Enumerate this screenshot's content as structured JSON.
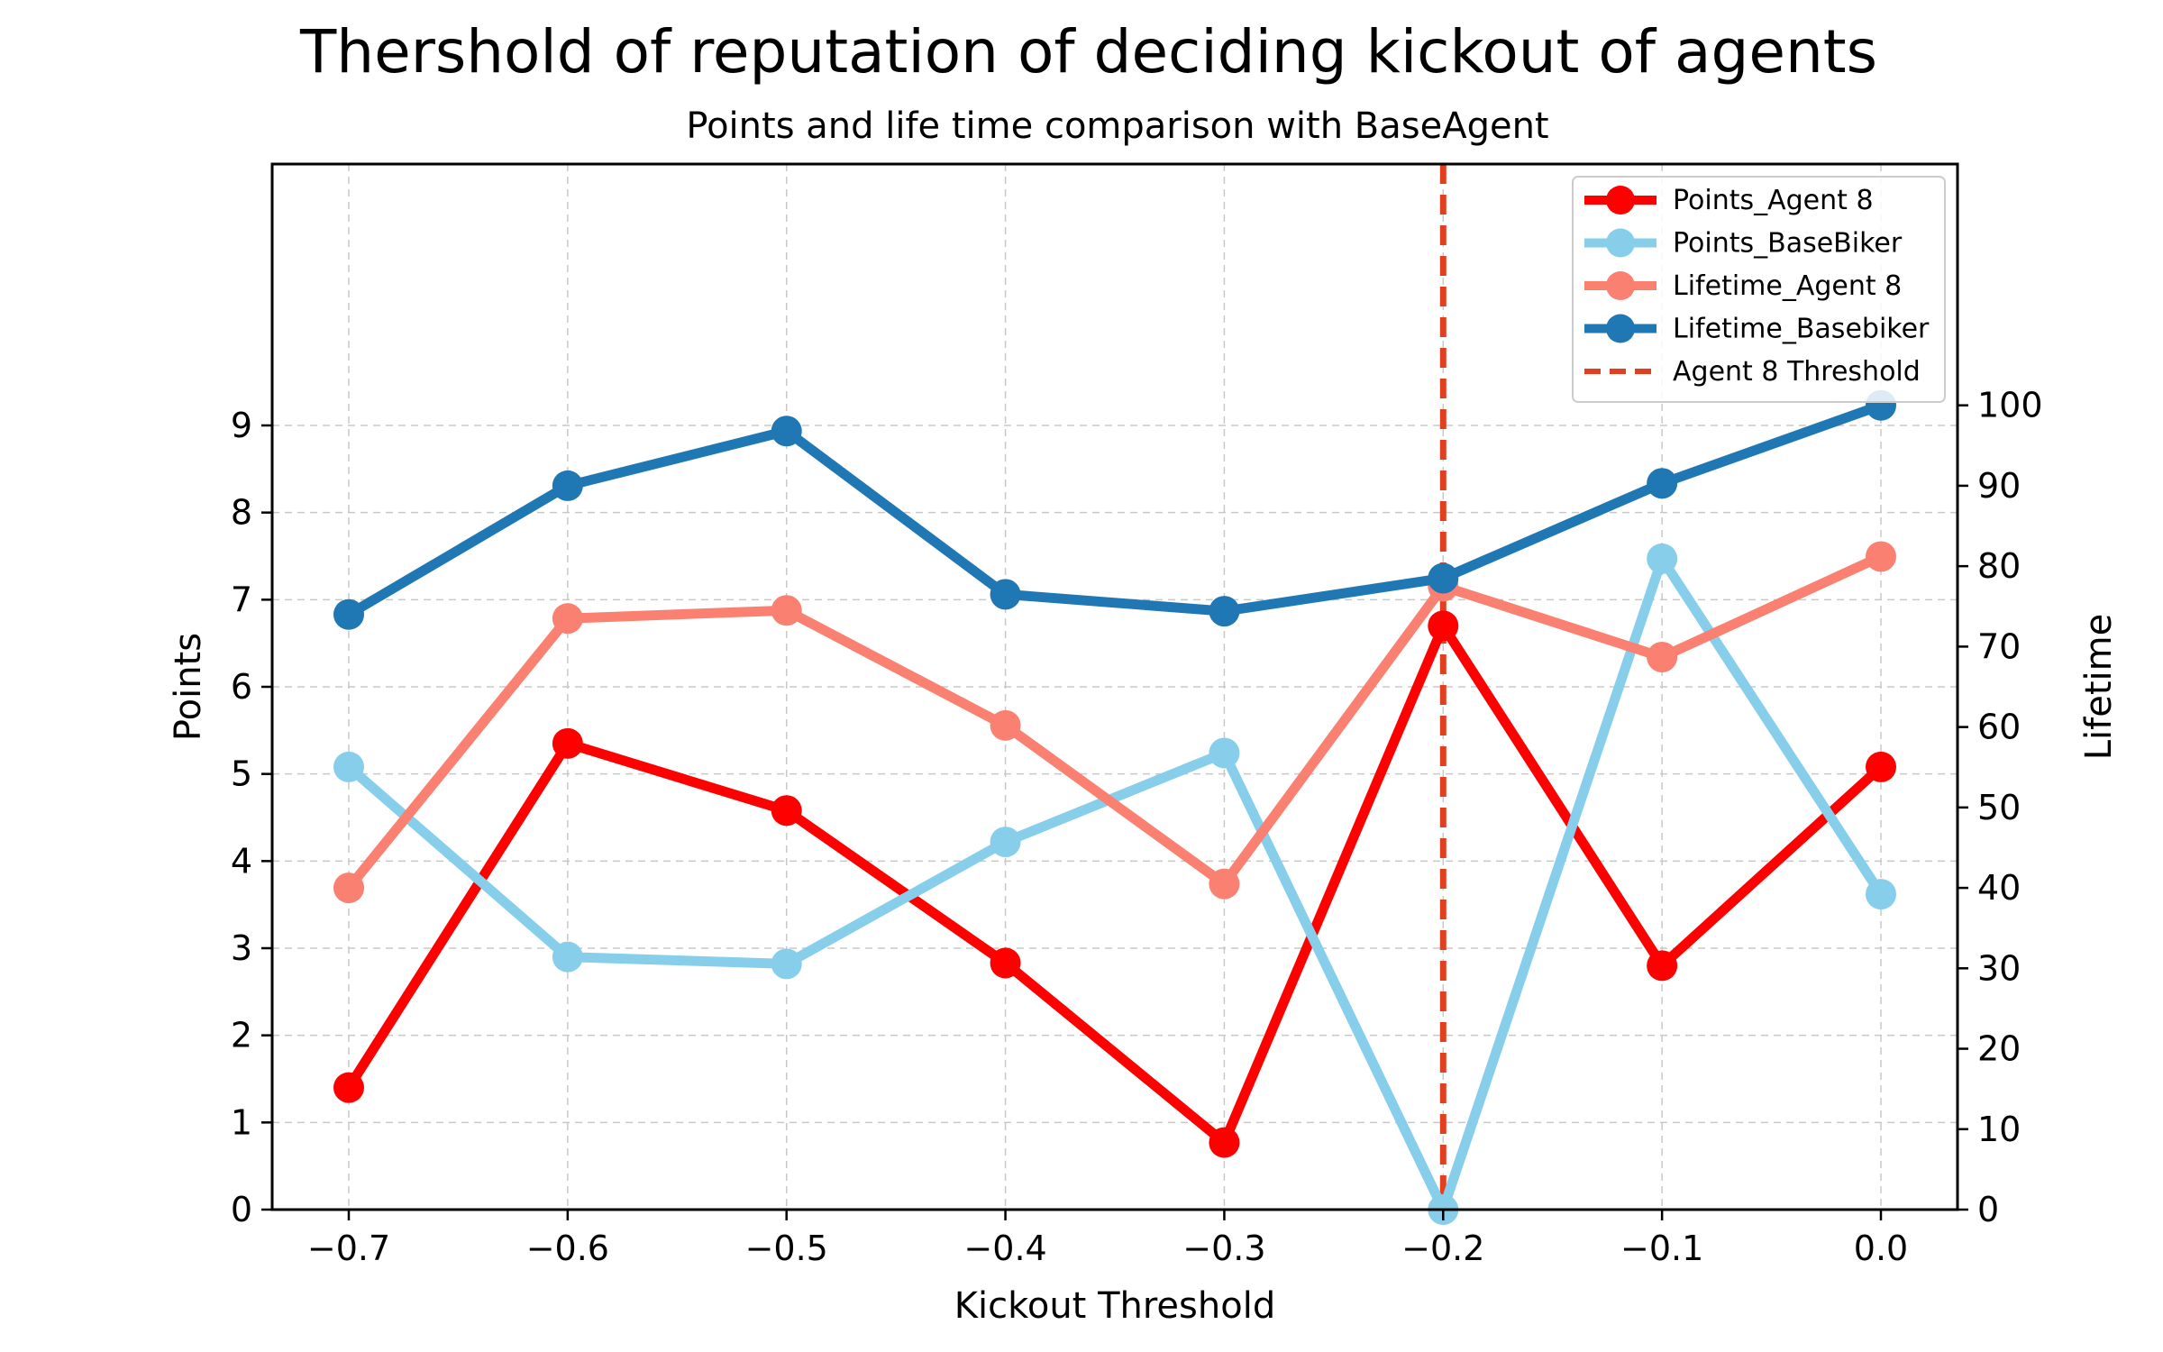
{
  "chart_data": {
    "type": "line",
    "title": "Thershold of reputation of deciding kickout of agents",
    "subtitle": "Points and life time comparison with BaseAgent",
    "xlabel": "Kickout Threshold",
    "ylabel": "Points",
    "ylabel_right": "Lifetime",
    "x": [
      -0.7,
      -0.6,
      -0.5,
      -0.4,
      -0.3,
      -0.2,
      -0.1,
      0.0
    ],
    "x_tick_labels": [
      "−0.7",
      "−0.6",
      "−0.5",
      "−0.4",
      "−0.3",
      "−0.2",
      "−0.1",
      "0.0"
    ],
    "xlim": [
      -0.735,
      0.035
    ],
    "ylim": [
      0,
      12
    ],
    "ylim_right": [
      0,
      130
    ],
    "y_ticks": [
      0,
      1,
      2,
      3,
      4,
      5,
      6,
      7,
      8,
      9
    ],
    "y_ticks_right": [
      0,
      10,
      20,
      30,
      40,
      50,
      60,
      70,
      80,
      90,
      100
    ],
    "grid": true,
    "legend_position": "top-right",
    "series": [
      {
        "name": "Points_Agent 8",
        "axis": "left",
        "color": "#ff0000",
        "values": [
          1.4,
          5.35,
          4.58,
          2.83,
          0.77,
          6.7,
          2.8,
          5.08
        ]
      },
      {
        "name": "Points_BaseBiker",
        "axis": "left",
        "color": "#87ceeb",
        "values": [
          5.08,
          2.9,
          2.82,
          4.22,
          5.24,
          0.0,
          7.47,
          3.62
        ]
      },
      {
        "name": "Lifetime_Agent 8",
        "axis": "right",
        "color": "#fa8072",
        "values": [
          40,
          73.5,
          74.5,
          60.2,
          40.5,
          77.5,
          68.7,
          81.2
        ]
      },
      {
        "name": "Lifetime_Basebiker",
        "axis": "right",
        "color": "#1f77b4",
        "values": [
          74,
          90,
          96.8,
          76.5,
          74.4,
          78.5,
          90.3,
          100
        ]
      }
    ],
    "threshold": {
      "name": "Agent 8 Threshold",
      "x": -0.2,
      "color": "#e0401f"
    }
  }
}
